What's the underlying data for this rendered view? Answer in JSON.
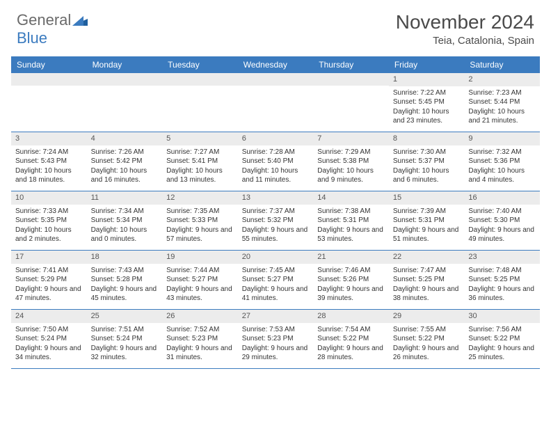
{
  "logo": {
    "part1": "General",
    "part2": "Blue"
  },
  "title": "November 2024",
  "location": "Teia, Catalonia, Spain",
  "day_labels": [
    "Sunday",
    "Monday",
    "Tuesday",
    "Wednesday",
    "Thursday",
    "Friday",
    "Saturday"
  ],
  "colors": {
    "header_bg": "#3b7bbf",
    "header_text": "#ffffff",
    "daynum_bg": "#ececec",
    "cell_text": "#333333",
    "rule": "#3b7bbf"
  },
  "weeks": [
    [
      {
        "n": "",
        "sr": "",
        "ss": "",
        "dl": ""
      },
      {
        "n": "",
        "sr": "",
        "ss": "",
        "dl": ""
      },
      {
        "n": "",
        "sr": "",
        "ss": "",
        "dl": ""
      },
      {
        "n": "",
        "sr": "",
        "ss": "",
        "dl": ""
      },
      {
        "n": "",
        "sr": "",
        "ss": "",
        "dl": ""
      },
      {
        "n": "1",
        "sr": "Sunrise: 7:22 AM",
        "ss": "Sunset: 5:45 PM",
        "dl": "Daylight: 10 hours and 23 minutes."
      },
      {
        "n": "2",
        "sr": "Sunrise: 7:23 AM",
        "ss": "Sunset: 5:44 PM",
        "dl": "Daylight: 10 hours and 21 minutes."
      }
    ],
    [
      {
        "n": "3",
        "sr": "Sunrise: 7:24 AM",
        "ss": "Sunset: 5:43 PM",
        "dl": "Daylight: 10 hours and 18 minutes."
      },
      {
        "n": "4",
        "sr": "Sunrise: 7:26 AM",
        "ss": "Sunset: 5:42 PM",
        "dl": "Daylight: 10 hours and 16 minutes."
      },
      {
        "n": "5",
        "sr": "Sunrise: 7:27 AM",
        "ss": "Sunset: 5:41 PM",
        "dl": "Daylight: 10 hours and 13 minutes."
      },
      {
        "n": "6",
        "sr": "Sunrise: 7:28 AM",
        "ss": "Sunset: 5:40 PM",
        "dl": "Daylight: 10 hours and 11 minutes."
      },
      {
        "n": "7",
        "sr": "Sunrise: 7:29 AM",
        "ss": "Sunset: 5:38 PM",
        "dl": "Daylight: 10 hours and 9 minutes."
      },
      {
        "n": "8",
        "sr": "Sunrise: 7:30 AM",
        "ss": "Sunset: 5:37 PM",
        "dl": "Daylight: 10 hours and 6 minutes."
      },
      {
        "n": "9",
        "sr": "Sunrise: 7:32 AM",
        "ss": "Sunset: 5:36 PM",
        "dl": "Daylight: 10 hours and 4 minutes."
      }
    ],
    [
      {
        "n": "10",
        "sr": "Sunrise: 7:33 AM",
        "ss": "Sunset: 5:35 PM",
        "dl": "Daylight: 10 hours and 2 minutes."
      },
      {
        "n": "11",
        "sr": "Sunrise: 7:34 AM",
        "ss": "Sunset: 5:34 PM",
        "dl": "Daylight: 10 hours and 0 minutes."
      },
      {
        "n": "12",
        "sr": "Sunrise: 7:35 AM",
        "ss": "Sunset: 5:33 PM",
        "dl": "Daylight: 9 hours and 57 minutes."
      },
      {
        "n": "13",
        "sr": "Sunrise: 7:37 AM",
        "ss": "Sunset: 5:32 PM",
        "dl": "Daylight: 9 hours and 55 minutes."
      },
      {
        "n": "14",
        "sr": "Sunrise: 7:38 AM",
        "ss": "Sunset: 5:31 PM",
        "dl": "Daylight: 9 hours and 53 minutes."
      },
      {
        "n": "15",
        "sr": "Sunrise: 7:39 AM",
        "ss": "Sunset: 5:31 PM",
        "dl": "Daylight: 9 hours and 51 minutes."
      },
      {
        "n": "16",
        "sr": "Sunrise: 7:40 AM",
        "ss": "Sunset: 5:30 PM",
        "dl": "Daylight: 9 hours and 49 minutes."
      }
    ],
    [
      {
        "n": "17",
        "sr": "Sunrise: 7:41 AM",
        "ss": "Sunset: 5:29 PM",
        "dl": "Daylight: 9 hours and 47 minutes."
      },
      {
        "n": "18",
        "sr": "Sunrise: 7:43 AM",
        "ss": "Sunset: 5:28 PM",
        "dl": "Daylight: 9 hours and 45 minutes."
      },
      {
        "n": "19",
        "sr": "Sunrise: 7:44 AM",
        "ss": "Sunset: 5:27 PM",
        "dl": "Daylight: 9 hours and 43 minutes."
      },
      {
        "n": "20",
        "sr": "Sunrise: 7:45 AM",
        "ss": "Sunset: 5:27 PM",
        "dl": "Daylight: 9 hours and 41 minutes."
      },
      {
        "n": "21",
        "sr": "Sunrise: 7:46 AM",
        "ss": "Sunset: 5:26 PM",
        "dl": "Daylight: 9 hours and 39 minutes."
      },
      {
        "n": "22",
        "sr": "Sunrise: 7:47 AM",
        "ss": "Sunset: 5:25 PM",
        "dl": "Daylight: 9 hours and 38 minutes."
      },
      {
        "n": "23",
        "sr": "Sunrise: 7:48 AM",
        "ss": "Sunset: 5:25 PM",
        "dl": "Daylight: 9 hours and 36 minutes."
      }
    ],
    [
      {
        "n": "24",
        "sr": "Sunrise: 7:50 AM",
        "ss": "Sunset: 5:24 PM",
        "dl": "Daylight: 9 hours and 34 minutes."
      },
      {
        "n": "25",
        "sr": "Sunrise: 7:51 AM",
        "ss": "Sunset: 5:24 PM",
        "dl": "Daylight: 9 hours and 32 minutes."
      },
      {
        "n": "26",
        "sr": "Sunrise: 7:52 AM",
        "ss": "Sunset: 5:23 PM",
        "dl": "Daylight: 9 hours and 31 minutes."
      },
      {
        "n": "27",
        "sr": "Sunrise: 7:53 AM",
        "ss": "Sunset: 5:23 PM",
        "dl": "Daylight: 9 hours and 29 minutes."
      },
      {
        "n": "28",
        "sr": "Sunrise: 7:54 AM",
        "ss": "Sunset: 5:22 PM",
        "dl": "Daylight: 9 hours and 28 minutes."
      },
      {
        "n": "29",
        "sr": "Sunrise: 7:55 AM",
        "ss": "Sunset: 5:22 PM",
        "dl": "Daylight: 9 hours and 26 minutes."
      },
      {
        "n": "30",
        "sr": "Sunrise: 7:56 AM",
        "ss": "Sunset: 5:22 PM",
        "dl": "Daylight: 9 hours and 25 minutes."
      }
    ]
  ]
}
